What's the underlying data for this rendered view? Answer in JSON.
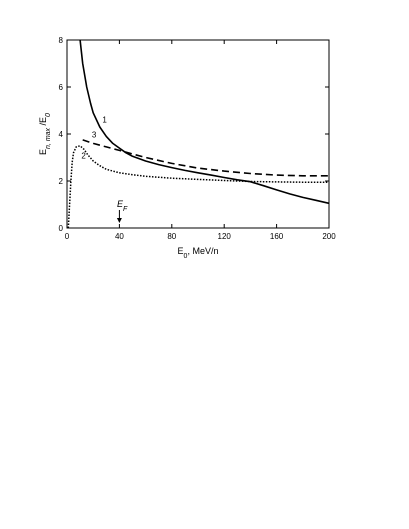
{
  "chart_data": {
    "type": "line",
    "xlabel": "E",
    "xlabel_sub": "0",
    "xlabel_suffix": ", MeV/n",
    "ylabel": "E",
    "ylabel_sub": "n, max",
    "ylabel_mid": " /E",
    "ylabel_sub2": "0",
    "xlim": [
      0,
      200
    ],
    "ylim": [
      0,
      8
    ],
    "xticks": [
      "0",
      "40",
      "80",
      "120",
      "160",
      "200"
    ],
    "yticks": [
      "0",
      "2",
      "4",
      "6",
      "8"
    ],
    "grid": false,
    "annotation": {
      "text": "E",
      "sub": "F",
      "x": 40
    },
    "series": [
      {
        "name": "1",
        "style": "solid",
        "x": [
          10,
          12,
          15,
          18,
          20,
          25,
          30,
          35,
          40,
          45,
          50,
          60,
          70,
          80,
          90,
          100,
          110,
          120,
          130,
          140,
          150,
          160,
          170,
          180,
          190,
          200
        ],
        "y": [
          8.0,
          7.0,
          6.0,
          5.3,
          4.9,
          4.3,
          3.9,
          3.6,
          3.4,
          3.2,
          3.05,
          2.85,
          2.7,
          2.57,
          2.45,
          2.35,
          2.25,
          2.15,
          2.05,
          1.97,
          1.8,
          1.62,
          1.45,
          1.3,
          1.18,
          1.05
        ]
      },
      {
        "name": "2",
        "style": "dotted",
        "x": [
          1,
          2,
          3,
          4,
          5,
          7,
          10,
          13,
          16,
          20,
          25,
          30,
          40,
          50,
          60,
          80,
          100,
          120,
          140,
          160,
          180,
          200
        ],
        "y": [
          0.0,
          1.0,
          2.0,
          2.8,
          3.2,
          3.45,
          3.5,
          3.35,
          3.1,
          2.85,
          2.65,
          2.5,
          2.35,
          2.27,
          2.2,
          2.12,
          2.07,
          2.02,
          1.98,
          1.96,
          1.95,
          1.95
        ]
      },
      {
        "name": "3",
        "style": "dashed",
        "x": [
          12,
          20,
          30,
          40,
          50,
          60,
          80,
          100,
          120,
          140,
          160,
          180,
          200
        ],
        "y": [
          3.75,
          3.6,
          3.45,
          3.3,
          3.15,
          3.0,
          2.75,
          2.55,
          2.42,
          2.32,
          2.25,
          2.22,
          2.22
        ]
      }
    ],
    "curve_labels": [
      {
        "text": "1",
        "x": 27,
        "y": 4.5
      },
      {
        "text": "2",
        "x": 11,
        "y": 2.95
      },
      {
        "text": "3",
        "x": 19,
        "y": 3.85
      }
    ]
  }
}
